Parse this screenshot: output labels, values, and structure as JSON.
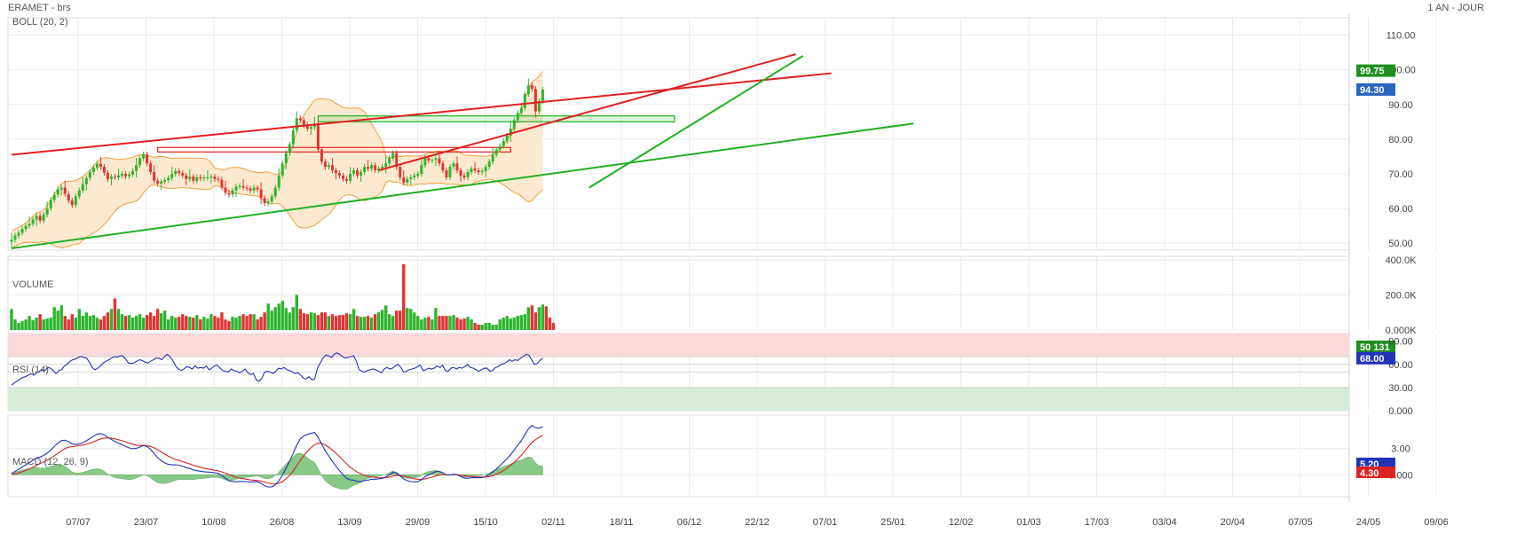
{
  "header": {
    "symbol_title": "ERAMET - brs",
    "period": "1 AN - JOUR"
  },
  "colors": {
    "up": "#2db52d",
    "down": "#e03535",
    "boll": "#f0a040",
    "boll_fill": "#fde9cf",
    "trend_red": "#e02020",
    "trend_green": "#22b022",
    "rsi": "#2233bb",
    "macd": "#2233bb",
    "signal": "#dd2222",
    "hist": "#7cc47c",
    "rsi_over": "#fbd9d9",
    "rsi_under": "#d7ecd7",
    "last_price_bg": "#2a65c0",
    "high_bg": "#1f8f1f",
    "volume_bg": "#1f8f1f"
  },
  "chart_data": [
    {
      "id": "price",
      "type": "candlestick",
      "title": "",
      "indicator_label": "BOLL (20, 2)",
      "ylim": [
        48,
        115
      ],
      "y_ticks": [
        "110.00",
        "100.00",
        "90.00",
        "80.00",
        "70.00",
        "60.00",
        "50.00"
      ],
      "y_tick_values": [
        110,
        100,
        90,
        80,
        70,
        60,
        50
      ],
      "x_tick_labels": [
        "07/07",
        "23/07",
        "10/08",
        "26/08",
        "13/09",
        "29/09",
        "15/10",
        "02/11",
        "18/11",
        "06/12",
        "22/12",
        "07/01",
        "25/01",
        "12/02",
        "01/03",
        "17/03",
        "03/04",
        "20/04",
        "07/05",
        "24/05",
        "09/06"
      ],
      "closes": [
        51.0,
        52.2,
        53.0,
        54.1,
        55.0,
        55.6,
        56.8,
        57.9,
        56.5,
        58.2,
        60.0,
        62.5,
        64.0,
        65.5,
        66.0,
        64.2,
        62.3,
        61.0,
        63.5,
        65.2,
        67.0,
        68.8,
        70.5,
        71.8,
        72.9,
        72.0,
        70.3,
        68.5,
        69.2,
        69.0,
        69.5,
        70.0,
        69.3,
        69.8,
        70.8,
        72.5,
        74.5,
        75.6,
        73.0,
        70.5,
        68.0,
        67.2,
        67.8,
        68.2,
        68.8,
        70.0,
        70.8,
        70.2,
        69.5,
        68.5,
        69.2,
        68.0,
        69.0,
        68.7,
        68.9,
        69.0,
        69.2,
        68.5,
        68.3,
        66.0,
        64.5,
        64.0,
        65.2,
        66.3,
        66.5,
        66.0,
        65.8,
        65.2,
        66.0,
        65.5,
        63.0,
        61.5,
        62.0,
        63.5,
        66.0,
        69.5,
        73.0,
        76.0,
        78.5,
        82.5,
        86.0,
        85.5,
        84.0,
        83.0,
        83.5,
        84.5,
        77.0,
        73.5,
        72.0,
        72.5,
        71.0,
        70.2,
        69.5,
        68.5,
        68.0,
        70.0,
        71.0,
        69.5,
        70.5,
        72.0,
        71.5,
        72.5,
        71.0,
        71.5,
        72.0,
        73.0,
        74.5,
        76.0,
        72.0,
        69.0,
        67.5,
        68.5,
        69.0,
        69.5,
        70.0,
        72.5,
        74.5,
        73.8,
        74.0,
        74.5,
        73.0,
        71.0,
        69.0,
        72.0,
        73.0,
        71.0,
        69.5,
        69.0,
        70.5,
        71.5,
        71.0,
        70.5,
        70.8,
        72.0,
        73.5,
        75.5,
        77.0,
        78.0,
        79.5,
        81.0,
        83.0,
        85.5,
        87.5,
        89.0,
        93.0,
        95.5,
        94.5,
        88.0,
        91.0,
        94.3
      ],
      "trendlines": [
        {
          "color": "red",
          "from": [
            0,
            75.5
          ],
          "to": [
            230,
            99.0
          ]
        },
        {
          "color": "red",
          "from": [
            103,
            71.0
          ],
          "to": [
            220,
            104.5
          ]
        },
        {
          "color": "green",
          "from": [
            0,
            48.5
          ],
          "to": [
            253,
            84.5
          ]
        },
        {
          "color": "green",
          "from": [
            162,
            66.0
          ],
          "to": [
            222,
            104.0
          ]
        }
      ],
      "zones": [
        {
          "color": "red",
          "from_index": 41,
          "to_index": 140,
          "y_low": 76.3,
          "y_high": 77.6
        },
        {
          "color": "green",
          "from_index": 86,
          "to_index": 186,
          "y_low": 85.0,
          "y_high": 86.7
        }
      ],
      "price_tags": [
        {
          "value": "99.75",
          "kind": "high"
        },
        {
          "value": "94.30",
          "kind": "last"
        }
      ]
    },
    {
      "id": "volume",
      "type": "bar",
      "label": "VOLUME",
      "ylim": [
        0,
        420000
      ],
      "y_ticks": [
        "400.0K",
        "200.0K",
        "0.000K"
      ],
      "y_tick_values": [
        400000,
        200000,
        0
      ],
      "volumes": [
        120000,
        60000,
        40000,
        50000,
        60000,
        80000,
        55000,
        70000,
        90000,
        60000,
        65000,
        70000,
        130000,
        110000,
        140000,
        80000,
        60000,
        90000,
        70000,
        120000,
        80000,
        100000,
        80000,
        85000,
        70000,
        60000,
        80000,
        100000,
        120000,
        180000,
        120000,
        90000,
        80000,
        85000,
        70000,
        80000,
        90000,
        70000,
        85000,
        100000,
        80000,
        120000,
        95000,
        110000,
        60000,
        80000,
        70000,
        75000,
        90000,
        80000,
        75000,
        70000,
        85000,
        60000,
        75000,
        65000,
        90000,
        80000,
        70000,
        100000,
        60000,
        50000,
        75000,
        70000,
        80000,
        90000,
        80000,
        90000,
        90000,
        60000,
        75000,
        100000,
        150000,
        110000,
        130000,
        150000,
        165000,
        125000,
        100000,
        130000,
        200000,
        120000,
        95000,
        90000,
        100000,
        95000,
        85000,
        100000,
        100000,
        80000,
        90000,
        80000,
        85000,
        85000,
        95000,
        90000,
        120000,
        80000,
        75000,
        75000,
        80000,
        70000,
        90000,
        100000,
        115000,
        140000,
        90000,
        80000,
        110000,
        110000,
        375000,
        125000,
        120000,
        100000,
        80000,
        60000,
        70000,
        75000,
        60000,
        125000,
        80000,
        80000,
        80000,
        80000,
        85000,
        70000,
        60000,
        65000,
        75000,
        60000,
        40000,
        30000,
        30000,
        40000,
        40000,
        30000,
        30000,
        60000,
        70000,
        80000,
        65000,
        70000,
        80000,
        85000,
        90000,
        130000,
        140000,
        100000,
        130000,
        145000,
        135000,
        70000,
        40000
      ],
      "last_tag": "50 131"
    },
    {
      "id": "rsi",
      "type": "line",
      "label": "RSI (14)",
      "ylim": [
        0,
        100
      ],
      "y_ticks": [
        "90.00",
        "60.00",
        "30.00",
        "0.000"
      ],
      "y_tick_values": [
        90,
        60,
        30,
        0
      ],
      "zones": {
        "overbought": [
          70,
          100
        ],
        "oversold": [
          0,
          30
        ]
      },
      "levels": [
        70,
        60,
        50,
        30
      ],
      "values": [
        33,
        36,
        38,
        41,
        43,
        44,
        46,
        48,
        46,
        49,
        51,
        53,
        52,
        56,
        55,
        52,
        48,
        52,
        53,
        58,
        60,
        64,
        66,
        67,
        69,
        70,
        69,
        68,
        63,
        56,
        53,
        55,
        58,
        62,
        64,
        66,
        68,
        70,
        69,
        71,
        71,
        67,
        62,
        61,
        62,
        64,
        66,
        65,
        63,
        62,
        64,
        66,
        68,
        68,
        66,
        70,
        73,
        70,
        65,
        58,
        54,
        52,
        54,
        57,
        56,
        54,
        58,
        55,
        56,
        55,
        58,
        53,
        55,
        58,
        59,
        55,
        52,
        51,
        50,
        54,
        52,
        51,
        49,
        51,
        54,
        49,
        47,
        48,
        40,
        38,
        42,
        50,
        51,
        50,
        48,
        51,
        55,
        54,
        56,
        53,
        52,
        50,
        48,
        49,
        46,
        42,
        41,
        44,
        40,
        41,
        55,
        62,
        68,
        72,
        71,
        69,
        73,
        75,
        73,
        70,
        68,
        69,
        70,
        71,
        64,
        53,
        51,
        50,
        52,
        53,
        54,
        53,
        51,
        49,
        54,
        56,
        54,
        55,
        58,
        60,
        56,
        50,
        51,
        53,
        54,
        55,
        57,
        59,
        52,
        53,
        55,
        54,
        55,
        58,
        56,
        59,
        52,
        51,
        55,
        56,
        54,
        56,
        55,
        57,
        60,
        56,
        55,
        53,
        51,
        53,
        55,
        55,
        51,
        52,
        56,
        57,
        60,
        61,
        63,
        66,
        64,
        66,
        65,
        68,
        70,
        73,
        72,
        66,
        60,
        61,
        65,
        68
      ]
    },
    {
      "id": "macd",
      "type": "line",
      "label": "MACD (12, 26, 9)",
      "ylim": [
        -2.5,
        6.8
      ],
      "y_ticks": [
        "3.00",
        "0.000"
      ],
      "y_tick_values": [
        3,
        0
      ],
      "tags": [
        {
          "value": "5.20",
          "kind": "macd"
        },
        {
          "value": "4.30",
          "kind": "signal"
        }
      ]
    }
  ]
}
